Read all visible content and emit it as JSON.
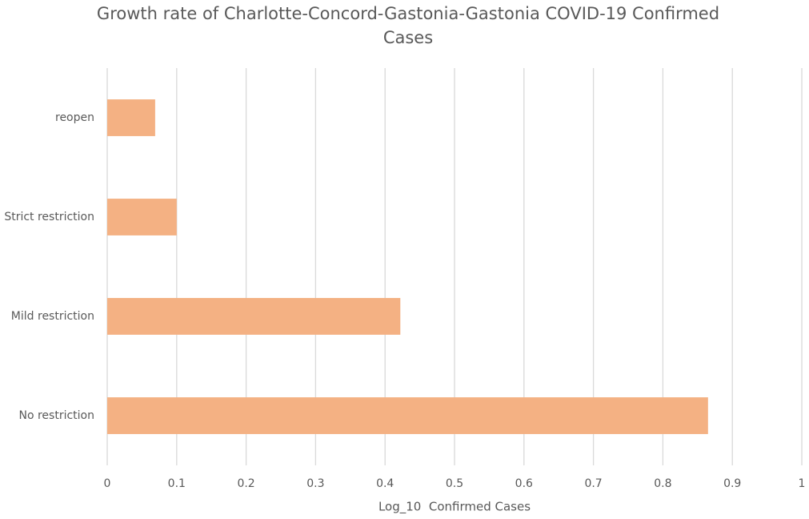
{
  "chart_data": {
    "type": "bar",
    "orientation": "horizontal",
    "title": "Growth rate of Charlotte-Concord-Gastonia-Gastonia COVID-19 Confirmed Cases",
    "x_label": "Log_10  Confirmed Cases",
    "categories": [
      "No restriction",
      "Mild restriction",
      "Strict restriction",
      "reopen"
    ],
    "values": [
      0.865,
      0.422,
      0.1,
      0.069
    ],
    "color": "#f4b183",
    "xlim": [
      0,
      1
    ],
    "xticks": [
      0,
      0.1,
      0.2,
      0.3,
      0.4,
      0.5,
      0.6,
      0.7,
      0.8,
      0.9,
      1
    ],
    "grid": true
  }
}
